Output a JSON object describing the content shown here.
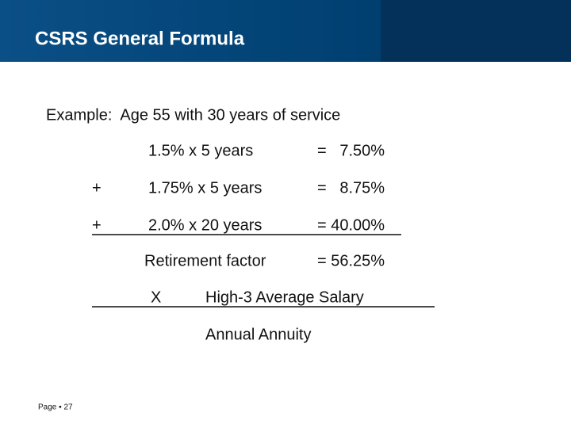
{
  "header": {
    "title": "CSRS General Formula"
  },
  "example": "Example:  Age 55 with 30 years of service",
  "rows": [
    {
      "term": "1.5% x 5 years",
      "result": "=   7.50%"
    },
    {
      "operator": "+",
      "term": "1.75% x 5 years",
      "result": "=   8.75%"
    },
    {
      "operator": "+",
      "term": "2.0% x 20 years",
      "result": "= 40.00%"
    },
    {
      "term": "Retirement factor",
      "result": "= 56.25%"
    }
  ],
  "multiply": {
    "operator": "X",
    "term": "High-3 Average Salary"
  },
  "result": "Annual Annuity",
  "footer": "Page ▪ 27"
}
